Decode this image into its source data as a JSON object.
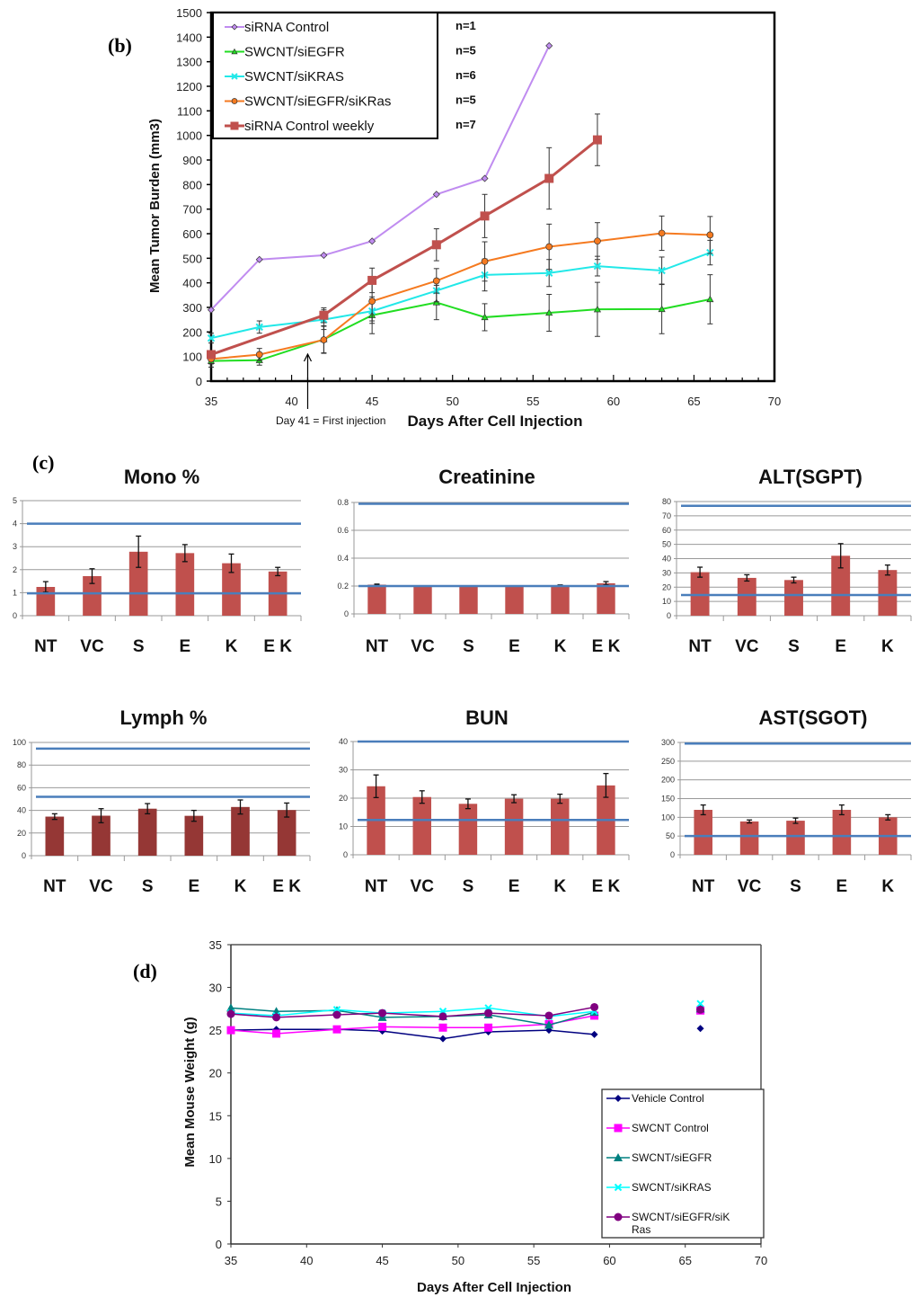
{
  "panels": {
    "b": "(b)",
    "c": "(c)",
    "d": "(d)"
  },
  "chart_data": [
    {
      "id": "b",
      "type": "line",
      "title": "",
      "xlabel": "Days After Cell Injection",
      "ylabel": "Mean Tumor Burden (mm3)",
      "xlim": [
        35,
        70
      ],
      "ylim": [
        0,
        1500
      ],
      "xticks": [
        35,
        40,
        45,
        50,
        55,
        60,
        65,
        70
      ],
      "yticks": [
        0,
        100,
        200,
        300,
        400,
        500,
        600,
        700,
        800,
        900,
        1000,
        1100,
        1200,
        1300,
        1400,
        1500
      ],
      "legend_position": "top-left",
      "annotation": {
        "text": "Day 41 = First injection",
        "x": 41,
        "arrow": true
      },
      "series": [
        {
          "name": "siRNA Control",
          "n": "n=1",
          "color": "#c08cf0",
          "marker": "diamond",
          "x": [
            35,
            38,
            42,
            45,
            49,
            52,
            56
          ],
          "y": [
            290,
            495,
            512,
            570,
            760,
            825,
            1365
          ],
          "err": null
        },
        {
          "name": "SWCNT/siEGFR",
          "n": "n=5",
          "color": "#22dd22",
          "marker": "triangle",
          "x": [
            35,
            38,
            42,
            45,
            49,
            52,
            56,
            59,
            63,
            66
          ],
          "y": [
            82,
            85,
            170,
            268,
            320,
            260,
            278,
            292,
            293,
            333
          ],
          "err": [
            25,
            20,
            55,
            75,
            70,
            55,
            75,
            110,
            100,
            100
          ]
        },
        {
          "name": "SWCNT/siKRAS",
          "n": "n=6",
          "color": "#22e8e8",
          "marker": "x",
          "x": [
            35,
            38,
            42,
            45,
            49,
            52,
            56,
            59,
            63,
            66
          ],
          "y": [
            175,
            220,
            250,
            285,
            368,
            432,
            440,
            468,
            450,
            523
          ],
          "err": [
            20,
            25,
            40,
            50,
            45,
            65,
            55,
            40,
            55,
            50
          ]
        },
        {
          "name": "SWCNT/siEGFR/siKRas",
          "n": "n=5",
          "color": "#f57a20",
          "marker": "circle",
          "x": [
            35,
            38,
            42,
            45,
            49,
            52,
            56,
            59,
            63,
            66
          ],
          "y": [
            90,
            108,
            168,
            325,
            408,
            487,
            547,
            570,
            602,
            595
          ],
          "err": [
            20,
            25,
            55,
            80,
            50,
            80,
            92,
            75,
            70,
            75
          ]
        },
        {
          "name": "siRNA Control weekly",
          "n": "n=7",
          "color": "#c0504d",
          "marker": "square",
          "x": [
            35,
            42,
            45,
            49,
            52,
            56,
            59
          ],
          "y": [
            108,
            268,
            410,
            555,
            672,
            825,
            982
          ],
          "err": [
            15,
            30,
            50,
            65,
            88,
            125,
            105
          ]
        }
      ]
    },
    {
      "id": "c1",
      "type": "bar",
      "title": "Mono %",
      "categories": [
        "NT",
        "VC",
        "S",
        "E",
        "K",
        "E K"
      ],
      "values": [
        1.25,
        1.72,
        2.78,
        2.72,
        2.28,
        1.92
      ],
      "err": [
        0.23,
        0.32,
        0.68,
        0.37,
        0.4,
        0.18
      ],
      "ylim": [
        0,
        5
      ],
      "yticks": [
        0,
        1,
        2,
        3,
        4,
        5
      ],
      "reference_lines": [
        4.0,
        0.97
      ],
      "bar_color": "#c0504d"
    },
    {
      "id": "c2",
      "type": "bar",
      "title": "Creatinine",
      "categories": [
        "NT",
        "VC",
        "S",
        "E",
        "K",
        "E K"
      ],
      "values": [
        0.21,
        0.2,
        0.2,
        0.2,
        0.205,
        0.22
      ],
      "err": [
        0.004,
        0,
        0,
        0,
        0.003,
        0.012
      ],
      "ylim": [
        0,
        0.8
      ],
      "yticks": [
        0,
        0.2,
        0.4,
        0.6,
        0.8
      ],
      "ytick_labels": [
        "0",
        "0.2",
        "0.4",
        "0.6",
        "0.8"
      ],
      "reference_lines": [
        0.79,
        0.2
      ],
      "bar_color": "#c0504d"
    },
    {
      "id": "c3",
      "type": "bar",
      "title": "ALT(SGPT)",
      "categories": [
        "NT",
        "VC",
        "S",
        "E",
        "K"
      ],
      "values": [
        30.5,
        26.5,
        25,
        42,
        32
      ],
      "err": [
        3.5,
        2.2,
        2,
        8.5,
        3.5
      ],
      "ylim": [
        0,
        80
      ],
      "yticks": [
        0,
        10,
        20,
        30,
        40,
        50,
        60,
        70,
        80
      ],
      "reference_lines": [
        77,
        14.5
      ],
      "bar_color": "#c0504d"
    },
    {
      "id": "c4",
      "type": "bar",
      "title": "Lymph %",
      "categories": [
        "NT",
        "VC",
        "S",
        "E",
        "K",
        "E K"
      ],
      "values": [
        34.5,
        35.3,
        41.5,
        35.2,
        43,
        40.3
      ],
      "err": [
        2.5,
        6.2,
        4.5,
        4.8,
        6.2,
        6.2
      ],
      "ylim": [
        0,
        100
      ],
      "yticks": [
        0,
        20,
        40,
        60,
        80,
        100
      ],
      "reference_lines": [
        94.5,
        52
      ],
      "bar_color": "#953735"
    },
    {
      "id": "c5",
      "type": "bar",
      "title": "BUN",
      "categories": [
        "NT",
        "VC",
        "S",
        "E",
        "K",
        "E K"
      ],
      "values": [
        24.2,
        20.4,
        18,
        19.8,
        19.8,
        24.5
      ],
      "err": [
        4,
        2.2,
        1.7,
        1.4,
        1.6,
        4.2
      ],
      "ylim": [
        0,
        40
      ],
      "yticks": [
        0,
        10,
        20,
        30,
        40
      ],
      "reference_lines": [
        40,
        12.3
      ],
      "bar_color": "#c0504d"
    },
    {
      "id": "c6",
      "type": "bar",
      "title": "AST(SGOT)",
      "categories": [
        "NT",
        "VC",
        "S",
        "E",
        "K"
      ],
      "values": [
        120,
        89,
        91,
        120,
        100
      ],
      "err": [
        13,
        4,
        7,
        13,
        7
      ],
      "ylim": [
        0,
        300
      ],
      "yticks": [
        0,
        50,
        100,
        150,
        200,
        250,
        300
      ],
      "reference_lines": [
        297,
        50
      ],
      "bar_color": "#c0504d"
    },
    {
      "id": "d",
      "type": "line",
      "xlabel": "Days After Cell Injection",
      "ylabel": "Mean Mouse Weight (g)",
      "xlim": [
        35,
        70
      ],
      "ylim": [
        0,
        35
      ],
      "xticks": [
        35,
        40,
        45,
        50,
        55,
        60,
        65,
        70
      ],
      "yticks": [
        0,
        5,
        10,
        15,
        20,
        25,
        30,
        35
      ],
      "legend_position": "bottom-right",
      "series": [
        {
          "name": "Vehicle Control",
          "color": "#000080",
          "marker": "diamond",
          "x": [
            35,
            38,
            42,
            45,
            49,
            52,
            56,
            59,
            66
          ],
          "y": [
            25.0,
            25.1,
            25.1,
            24.9,
            24.0,
            24.8,
            25.0,
            24.5,
            25.2
          ],
          "connected_until": 59
        },
        {
          "name": "SWCNT Control",
          "color": "#ff00ff",
          "marker": "square",
          "x": [
            35,
            38,
            42,
            45,
            49,
            52,
            56,
            59,
            66
          ],
          "y": [
            25.0,
            24.6,
            25.1,
            25.4,
            25.3,
            25.3,
            25.7,
            26.7,
            27.3
          ],
          "connected_until": 59
        },
        {
          "name": "SWCNT/siEGFR",
          "color": "#008080",
          "marker": "triangle",
          "x": [
            35,
            38,
            42,
            45,
            49,
            52,
            56,
            59,
            66
          ],
          "y": [
            27.6,
            27.2,
            27.3,
            26.5,
            26.6,
            26.8,
            25.6,
            27.1,
            27.5
          ],
          "connected_until": 59
        },
        {
          "name": "SWCNT/siKRAS",
          "color": "#00ffff",
          "marker": "x",
          "x": [
            35,
            38,
            42,
            45,
            49,
            52,
            56,
            59,
            66
          ],
          "y": [
            27.0,
            26.7,
            27.4,
            27.0,
            27.2,
            27.6,
            26.6,
            27.2,
            28.1
          ],
          "connected_until": 59
        },
        {
          "name": "SWCNT/siEGFR/siKRas",
          "legend_lines": [
            "SWCNT/siEGFR/siK",
            "Ras"
          ],
          "color": "#800080",
          "marker": "circle",
          "x": [
            35,
            38,
            42,
            45,
            49,
            52,
            56,
            59,
            66
          ],
          "y": [
            26.9,
            26.5,
            26.8,
            27.0,
            26.6,
            27.0,
            26.7,
            27.7,
            27.4
          ],
          "connected_until": 59
        }
      ]
    }
  ]
}
